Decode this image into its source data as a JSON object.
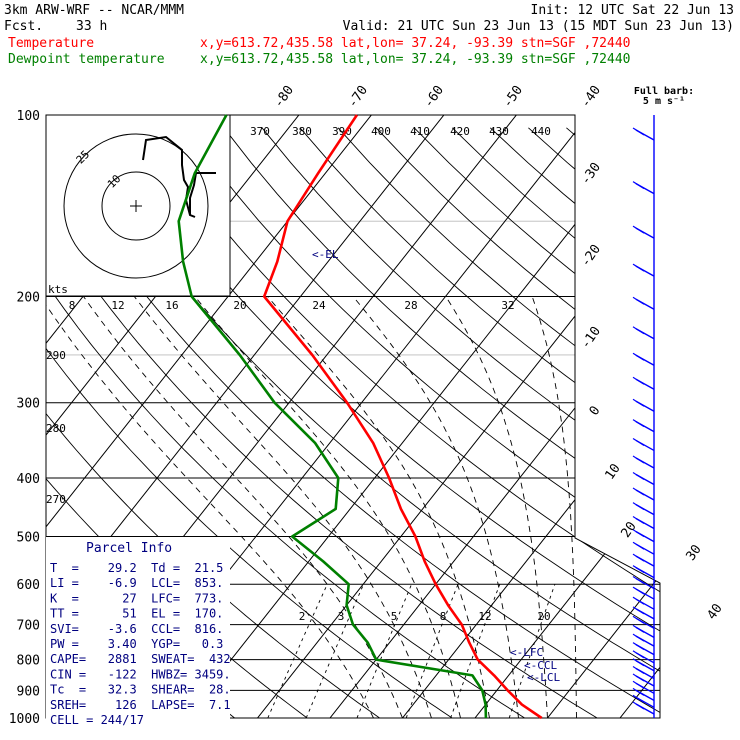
{
  "header": {
    "model": "3km ARW-WRF -- NCAR/MMM",
    "fcst_label": "Fcst.",
    "fcst_value": "33 h",
    "init": "Init: 12 UTC Sat 22 Jun 13",
    "valid": "Valid: 21 UTC Sun 23 Jun 13 (15 MDT Sun 23 Jun 13)",
    "temp_label": "Temperature",
    "temp_loc": "x,y=613.72,435.58   lat,lon= 37.24, -93.39   stn=SGF ,72440",
    "dew_label": "Dewpoint temperature",
    "dew_loc": "x,y=613.72,435.58   lat,lon= 37.24, -93.39   stn=SGF ,72440",
    "barb_title": "Full barb:",
    "barb_unit": "5 m s⁻¹",
    "kts_label": "kts"
  },
  "chart_data": {
    "type": "line",
    "pressure_levels": [
      "100",
      "200",
      "300",
      "400",
      "500",
      "600",
      "700",
      "800",
      "900",
      "1000"
    ],
    "isotherm_labels": [
      "-80",
      "-70",
      "-60",
      "-50",
      "-40",
      "-30",
      "-20",
      "-10",
      "0",
      "10",
      "20",
      "30",
      "40"
    ],
    "theta_e_labels": [
      "370",
      "380",
      "390",
      "400",
      "410",
      "420",
      "430",
      "440"
    ],
    "theta_labels": [
      "290",
      "280",
      "270"
    ],
    "mixing_ratio_labels": [
      "2",
      "3",
      "5",
      "8",
      "12",
      "20"
    ],
    "hodo_speed_labels": [
      "8",
      "12",
      "16",
      "20",
      "24",
      "28",
      "32"
    ],
    "hodo_ring_labels": [
      "25",
      "10"
    ],
    "series": [
      {
        "name": "Temperature",
        "color": "#ff0000",
        "points": [
          [
            1000,
            29.2
          ],
          [
            950,
            25
          ],
          [
            900,
            21.5
          ],
          [
            850,
            18
          ],
          [
            800,
            14
          ],
          [
            750,
            11
          ],
          [
            700,
            8
          ],
          [
            650,
            4
          ],
          [
            600,
            0
          ],
          [
            550,
            -4
          ],
          [
            500,
            -8
          ],
          [
            450,
            -13
          ],
          [
            400,
            -18
          ],
          [
            350,
            -24
          ],
          [
            300,
            -32
          ],
          [
            250,
            -42
          ],
          [
            200,
            -55
          ],
          [
            175,
            -57
          ],
          [
            150,
            -60
          ],
          [
            125,
            -61
          ],
          [
            100,
            -62
          ]
        ]
      },
      {
        "name": "Dewpoint temperature",
        "color": "#008000",
        "points": [
          [
            1000,
            21.5
          ],
          [
            950,
            20
          ],
          [
            900,
            18
          ],
          [
            850,
            15
          ],
          [
            800,
            0
          ],
          [
            750,
            -3
          ],
          [
            700,
            -7
          ],
          [
            650,
            -10
          ],
          [
            600,
            -12
          ],
          [
            550,
            -18
          ],
          [
            500,
            -25
          ],
          [
            450,
            -22
          ],
          [
            400,
            -25
          ],
          [
            350,
            -32
          ],
          [
            300,
            -42
          ],
          [
            250,
            -52
          ],
          [
            200,
            -65
          ],
          [
            175,
            -70
          ],
          [
            150,
            -75
          ],
          [
            125,
            -78
          ],
          [
            100,
            -80
          ]
        ]
      }
    ],
    "annotations": [
      "<-EL",
      "<-LFC",
      "<-CCL",
      "<-LCL"
    ]
  },
  "parcel": {
    "title": "Parcel Info",
    "rows": [
      "T  =    29.2  Td =  21.5",
      "LI =    -6.9  LCL=  853.",
      "K  =      27  LFC=  773.",
      "TT =      51  EL =  170.",
      "SVI=    -3.6  CCL=  816.",
      "PW =    3.40  YGP=   0.3",
      "CAPE=   2881  SWEAT=  432",
      "CIN =   -122  HWBZ= 3459.",
      "Tc  =   32.3  SHEAR=  28.",
      "SREH=    126  LAPSE=  7.1",
      "CELL = 244/17"
    ]
  }
}
